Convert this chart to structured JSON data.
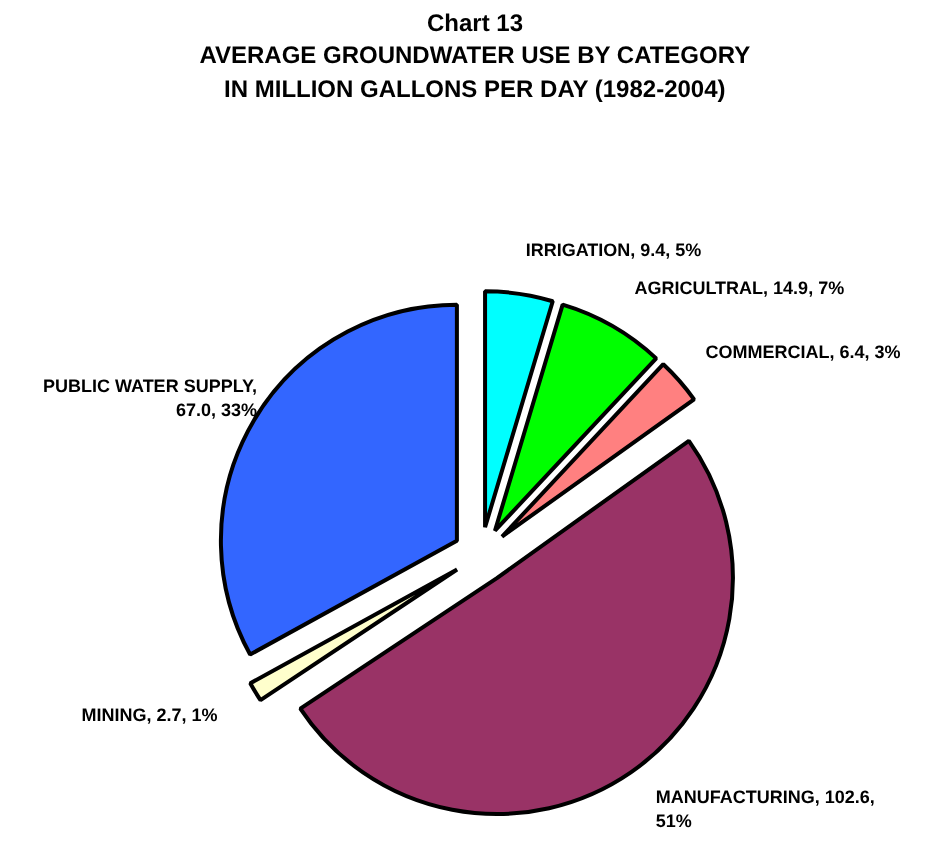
{
  "chart_data": {
    "type": "pie",
    "title": "Chart 13",
    "subtitle": "AVERAGE GROUNDWATER USE BY CATEGORY\nIN MILLION GALLONS PER DAY (1982-2004)",
    "categories": [
      "IRRIGATION, 9.4, 5%",
      "AGRICULTRAL, 14.9, 7%",
      "COMMERCIAL, 6.4, 3%",
      "MANUFACTURING, 102.6, 51%",
      "MINING, 2.7, 1%",
      "PUBLIC WATER SUPPLY, 67.0, 33%"
    ],
    "values": [
      9.4,
      14.9,
      6.4,
      102.6,
      2.7,
      67.0
    ],
    "colors": [
      "#00ffff",
      "#00ff00",
      "#ff8080",
      "#993366",
      "#ffffcc",
      "#3366ff"
    ]
  }
}
